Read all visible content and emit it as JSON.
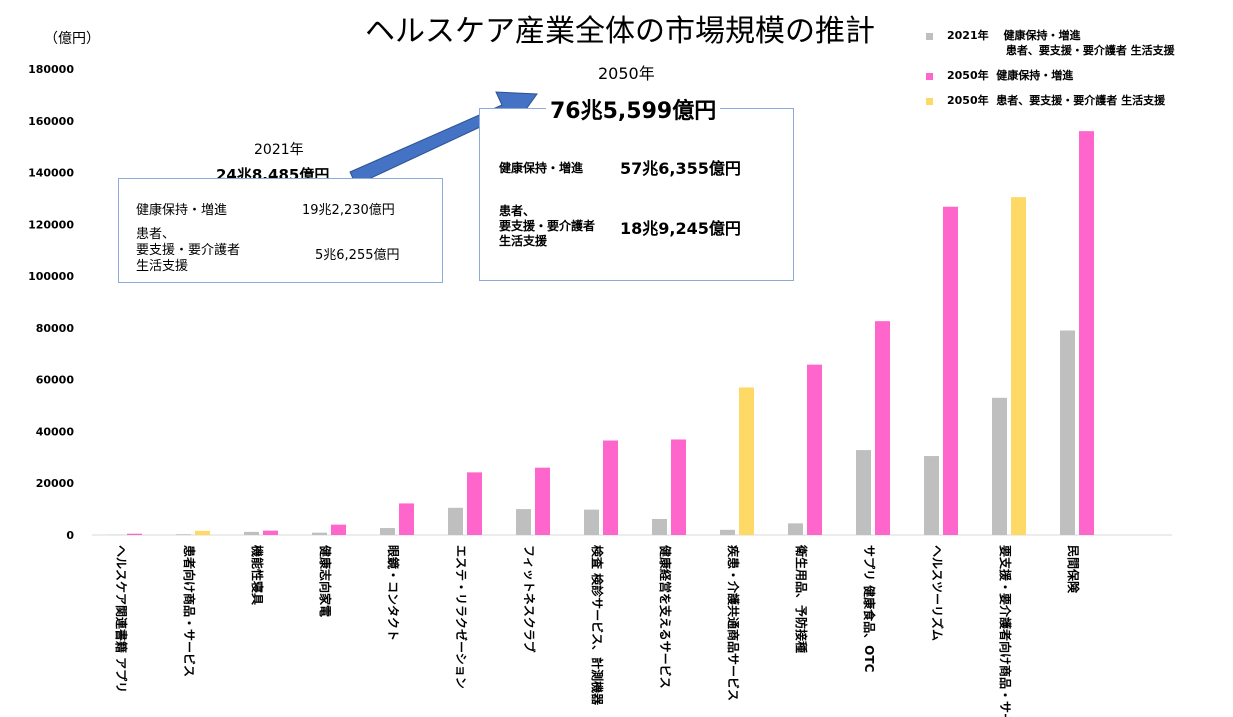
{
  "title": "ヘルスケア産業全体の市場規模の推計",
  "unit_label": "（億円）",
  "legend": [
    {
      "label": "2021年　 健康保持・増進\n　　　　　 患者、要支援・要介護者 生活支援",
      "color": "#bfbfbf"
    },
    {
      "label": "2050年  健康保持・増進",
      "color": "#ff66cc"
    },
    {
      "label": "2050年  患者、要支援・要介護者 生活支援",
      "color": "#ffd966"
    }
  ],
  "box2021": {
    "year": "2021年",
    "total": "24兆8,485億円",
    "row1_label": "健康保持・増進",
    "row1_value": "19兆2,230億円",
    "row2_label": "患者、\n要支援・要介護者\n生活支援",
    "row2_value": "5兆6,255億円"
  },
  "box2050": {
    "year": "2050年",
    "total": "76兆5,599億円",
    "row1_label": "健康保持・増進",
    "row1_value": "57兆6,355億円",
    "row2_label": "患者、\n要支援・要介護者\n生活支援",
    "row2_value": "18兆9,245億円"
  },
  "colors": {
    "y2021": "#bfbfbf",
    "y2050_health": "#ff66cc",
    "y2050_support": "#ffd966",
    "box_border": "#8eaadb",
    "arrow": "#4472c4"
  },
  "chart_data": {
    "type": "bar",
    "ylim": [
      0,
      180000
    ],
    "y_ticks": [
      0,
      20000,
      40000,
      60000,
      80000,
      100000,
      120000,
      140000,
      160000,
      180000
    ],
    "categories": [
      "ヘルスケア関連書籍 アプリ",
      "患者向け商品・サービス",
      "機能性寝具",
      "健康志向家電",
      "眼鏡・コンタクト",
      "エステ・リラクゼーション",
      "フィットネスクラブ",
      "検査 検診サービス、計測機器",
      "健康経営を支えるサービス",
      "疾患・介護共通商品サービス",
      "衛生用品、予防接種",
      "サプリ 健康食品、OTC",
      "ヘルスツーリズム",
      "要支援・要介護者向け商品・サービス",
      "民間保険"
    ],
    "series": [
      {
        "values": [
          100,
          300,
          1200,
          900,
          2700,
          10500,
          10000,
          9800,
          6200,
          2000,
          4500,
          32800,
          30500,
          53000,
          79000
        ]
      },
      {
        "values": [
          500,
          1600,
          1700,
          4000,
          12200,
          24200,
          26000,
          36500,
          36900,
          57000,
          65800,
          82600,
          126800,
          130500,
          156000
        ],
        "colors": [
          "pink",
          "yellow",
          "pink",
          "pink",
          "pink",
          "pink",
          "pink",
          "pink",
          "pink",
          "yellow",
          "pink",
          "pink",
          "pink",
          "yellow",
          "pink"
        ]
      }
    ]
  }
}
